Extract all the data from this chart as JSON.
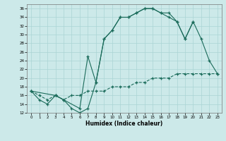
{
  "xlabel": "Humidex (Indice chaleur)",
  "bg_color": "#cce9e9",
  "grid_color": "#aad4d4",
  "line_color": "#1a6b5a",
  "xlim": [
    -0.5,
    23.5
  ],
  "ylim": [
    12,
    37
  ],
  "yticks": [
    12,
    14,
    16,
    18,
    20,
    22,
    24,
    26,
    28,
    30,
    32,
    34,
    36
  ],
  "xticks": [
    0,
    1,
    2,
    3,
    4,
    5,
    6,
    7,
    8,
    9,
    10,
    11,
    12,
    13,
    14,
    15,
    16,
    17,
    18,
    19,
    20,
    21,
    22,
    23
  ],
  "series1_x": [
    0,
    1,
    2,
    3,
    4,
    5,
    6,
    7,
    8,
    9,
    10,
    11,
    12,
    13,
    14,
    15,
    16,
    17,
    18,
    19,
    20
  ],
  "series1_y": [
    17,
    15,
    14,
    16,
    15,
    13,
    12,
    13,
    19,
    29,
    31,
    34,
    34,
    35,
    36,
    36,
    35,
    35,
    33,
    29,
    33
  ],
  "series2_x": [
    0,
    3,
    6,
    7,
    8,
    9,
    10,
    11,
    12,
    13,
    14,
    15,
    16,
    17,
    18,
    19,
    20,
    21,
    22,
    23
  ],
  "series2_y": [
    17,
    16,
    13,
    25,
    19,
    29,
    31,
    34,
    34,
    35,
    36,
    36,
    35,
    34,
    33,
    29,
    33,
    29,
    24,
    21
  ],
  "series3_x": [
    0,
    1,
    2,
    3,
    4,
    5,
    6,
    7,
    8,
    9,
    10,
    11,
    12,
    13,
    14,
    15,
    16,
    17,
    18,
    19,
    20,
    21,
    22,
    23
  ],
  "series3_y": [
    17,
    16,
    15,
    16,
    15,
    16,
    16,
    17,
    17,
    17,
    18,
    18,
    18,
    19,
    19,
    20,
    20,
    20,
    21,
    21,
    21,
    21,
    21,
    21
  ]
}
